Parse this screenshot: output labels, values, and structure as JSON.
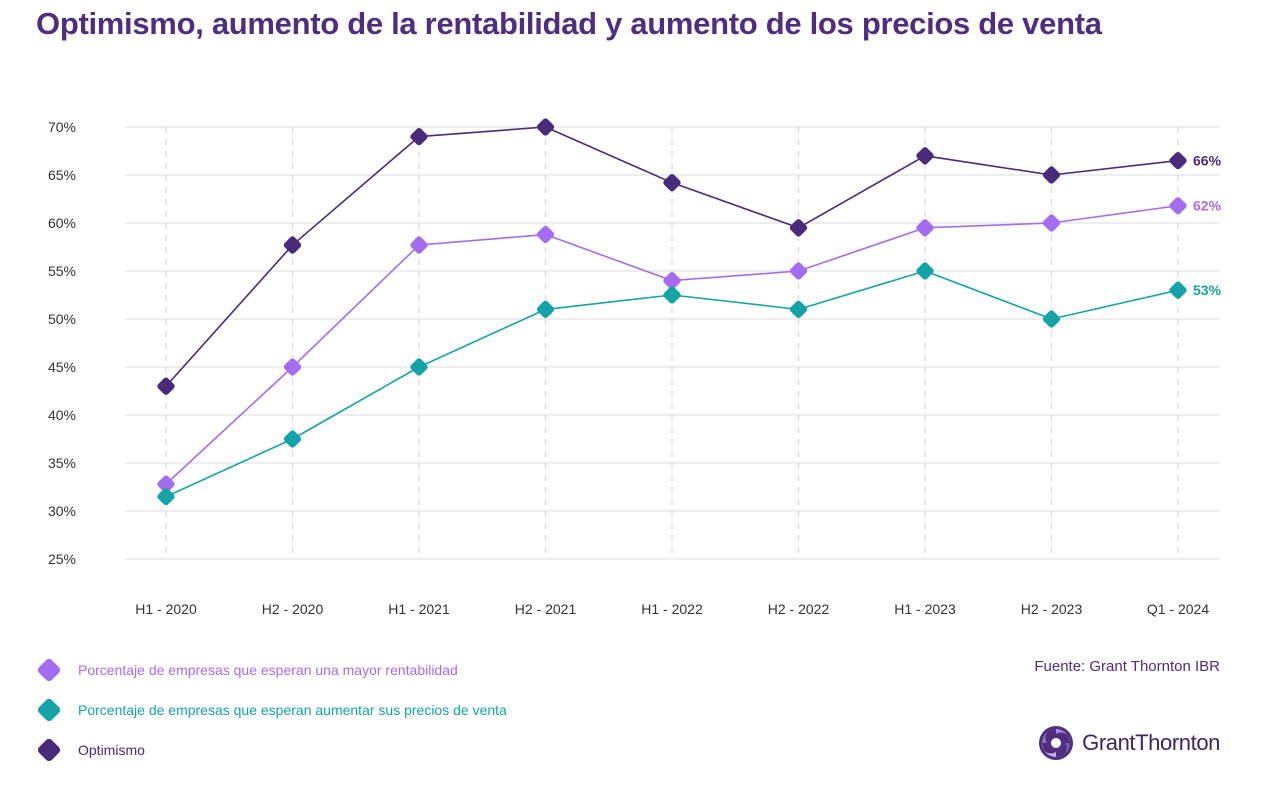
{
  "title": "Optimismo, aumento de la rentabilidad y aumento de los precios de venta",
  "source": "Fuente: Grant Thornton IBR",
  "logo": {
    "text": "GrantThornton",
    "icon": "grant-thornton-swirl-icon"
  },
  "colors": {
    "title": "#4f2d7f",
    "optimismo": "#4a2a7a",
    "rentabilidad": "#a56cf0",
    "precios": "#14a3a9"
  },
  "chart_data": {
    "type": "line",
    "title": "Optimismo, aumento de la rentabilidad y aumento de los precios de venta",
    "categories": [
      "H1 - 2020",
      "H2 - 2020",
      "H1 - 2021",
      "H2 - 2021",
      "H1 - 2022",
      "H2 - 2022",
      "H1 - 2023",
      "H2 - 2023",
      "Q1 - 2024"
    ],
    "y_ticks": [
      "25%",
      "30%",
      "35%",
      "40%",
      "45%",
      "50%",
      "55%",
      "60%",
      "65%",
      "70%"
    ],
    "ylim": [
      25,
      70
    ],
    "grid": "horizontal solid, vertical dashed",
    "legend_position": "bottom-left",
    "series": [
      {
        "key": "optimismo",
        "name": "Optimismo",
        "color": "#4a2a7a",
        "values": [
          43,
          57.7,
          69,
          70,
          64.2,
          59.5,
          67,
          65,
          66.5
        ],
        "end_label": "66%"
      },
      {
        "key": "rentabilidad",
        "name": "Porcentaje de empresas que esperan una mayor rentabilidad",
        "color": "#a56cf0",
        "values": [
          32.8,
          45,
          57.7,
          58.8,
          54,
          55,
          59.5,
          60,
          61.8
        ],
        "end_label": "62%"
      },
      {
        "key": "precios",
        "name": "Porcentaje de empresas que esperan aumentar sus precios de venta",
        "color": "#14a3a9",
        "values": [
          31.5,
          37.5,
          45,
          51,
          52.5,
          51,
          55,
          50,
          53
        ],
        "end_label": "53%"
      }
    ],
    "legend": [
      {
        "key": "rentabilidad",
        "label": "Porcentaje de empresas que esperan una mayor rentabilidad",
        "color": "#a56cf0"
      },
      {
        "key": "precios",
        "label": "Porcentaje de empresas que esperan aumentar sus precios de venta",
        "color": "#14a3a9"
      },
      {
        "key": "optimismo",
        "label": "Optimismo",
        "color": "#4a2a7a"
      }
    ]
  }
}
